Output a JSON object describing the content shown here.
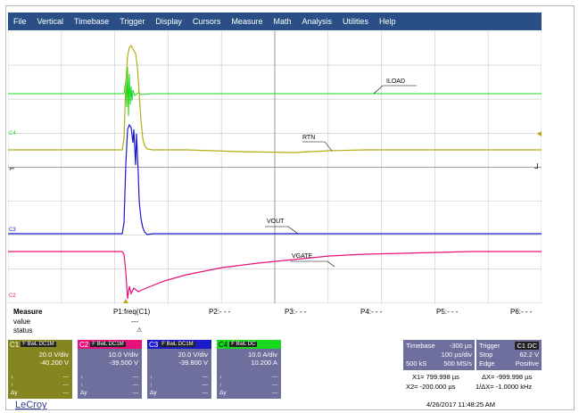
{
  "menu": [
    "File",
    "Vertical",
    "Timebase",
    "Trigger",
    "Display",
    "Cursors",
    "Measure",
    "Math",
    "Analysis",
    "Utilities",
    "Help"
  ],
  "scope": {
    "trace_labels": {
      "iload": "ILOAD",
      "rtn": "RTN",
      "vout": "VOUT",
      "vgate": "VGATE"
    },
    "channel_markers": {
      "c4": "C4",
      "c3": "C3",
      "c2": "C2"
    },
    "colors": {
      "c1": "#b5ad13",
      "c2": "#e8117a",
      "c3": "#1a1acc",
      "c4": "#17d81c",
      "grid": "#bfbfbf"
    }
  },
  "measure": {
    "title": "Measure",
    "row2": "value",
    "row3": "status",
    "params": [
      {
        "label": "P1:freq(C1)",
        "value": "---"
      },
      {
        "label": "P2:- - -"
      },
      {
        "label": "P3:- - -"
      },
      {
        "label": "P4:- - -"
      },
      {
        "label": "P5:- - -"
      },
      {
        "label": "P6:- - -"
      }
    ]
  },
  "channels": [
    {
      "name": "C1",
      "tags": "F BwL DC1M",
      "vdiv": "20.0 V/div",
      "offset": "-40.200 V",
      "color": "#868620"
    },
    {
      "name": "C2",
      "tags": "F BwL DC1M",
      "vdiv": "10.0 V/div",
      "offset": "-39.500 V",
      "color": "#6f6f9e"
    },
    {
      "name": "C3",
      "tags": "F BwL DC1M",
      "vdiv": "20.0 V/div",
      "offset": "-39.800 V",
      "color": "#6f6f9e"
    },
    {
      "name": "C4",
      "tags": "F BwL DC",
      "vdiv": "10.0 A/div",
      "offset": "10.200 A",
      "color": "#6f6f9e"
    }
  ],
  "channel_small": {
    "down": "↓",
    "up": "↑",
    "dy": "Δy",
    "dash": "---"
  },
  "timebase": {
    "label": "Timebase",
    "value": "-300 µs",
    "per_div": "100 µs/div",
    "samples": "500 kS",
    "rate": "500 MS/s"
  },
  "trigger": {
    "label": "Trigger",
    "tags": "C1 DC",
    "mode": "Stop",
    "level": "62.2 V",
    "type": "Edge",
    "slope": "Positive"
  },
  "cursors": {
    "x1": "X1=  799.998 µs",
    "dx": "ΔX=  -999.998 µs",
    "x2": "X2= -200.000 µs",
    "inv_dx": "1/ΔX= -1.0000 kHz"
  },
  "brand": "LeCroy",
  "timestamp": "4/26/2017 11:48:25 AM"
}
